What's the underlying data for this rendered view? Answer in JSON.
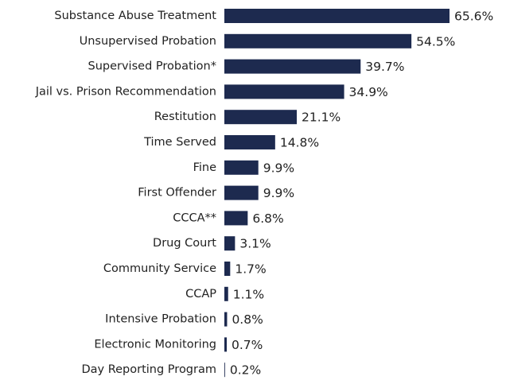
{
  "chart_data": {
    "type": "bar",
    "orientation": "horizontal",
    "categories": [
      "Substance Abuse Treatment",
      "Unsupervised Probation",
      "Supervised Probation*",
      "Jail vs. Prison Recommendation",
      "Restitution",
      "Time Served",
      "Fine",
      "First Offender",
      "CCCA**",
      "Drug Court",
      "Community Service",
      "CCAP",
      "Intensive Probation",
      "Electronic Monitoring",
      "Day Reporting Program"
    ],
    "values": [
      65.6,
      54.5,
      39.7,
      34.9,
      21.1,
      14.8,
      9.9,
      9.9,
      6.8,
      3.1,
      1.7,
      1.1,
      0.8,
      0.7,
      0.2
    ],
    "value_labels": [
      "65.6%",
      "54.5%",
      "39.7%",
      "34.9%",
      "21.1%",
      "14.8%",
      "9.9%",
      "9.9%",
      "6.8%",
      "3.1%",
      "1.7%",
      "1.1%",
      "0.8%",
      "0.7%",
      "0.2%"
    ],
    "color": "#1d2a4f"
  }
}
